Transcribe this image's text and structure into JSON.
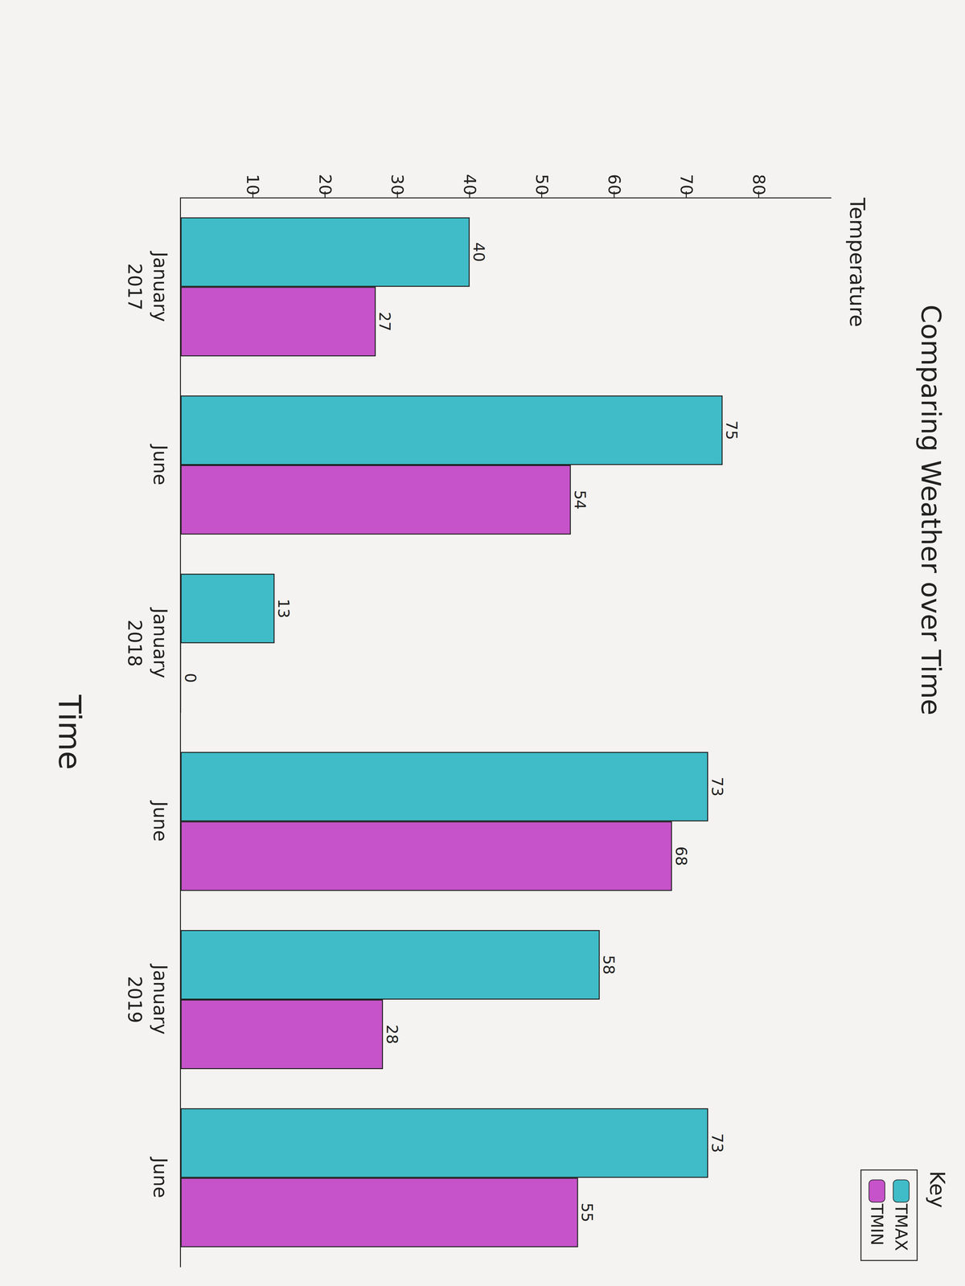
{
  "chart_data": {
    "type": "bar",
    "title": "Comparing Weather over Time",
    "x_label": "Time",
    "y_label": "Temperature",
    "categories": [
      "January\n2017",
      "June",
      "January\n2018",
      "June",
      "January\n2019",
      "June"
    ],
    "series": [
      {
        "name": "TMAX",
        "color": "#3fbcc8",
        "values": [
          40,
          75,
          13,
          73,
          58,
          73
        ]
      },
      {
        "name": "TMIN",
        "color": "#c653c9",
        "values": [
          27,
          54,
          0,
          68,
          28,
          55
        ]
      }
    ],
    "ylim": [
      0,
      90
    ],
    "yticks": [
      10,
      20,
      30,
      40,
      50,
      60,
      70,
      80
    ],
    "grid": false,
    "legend": "upper right",
    "legend_title": "Key",
    "data_labels": true
  }
}
